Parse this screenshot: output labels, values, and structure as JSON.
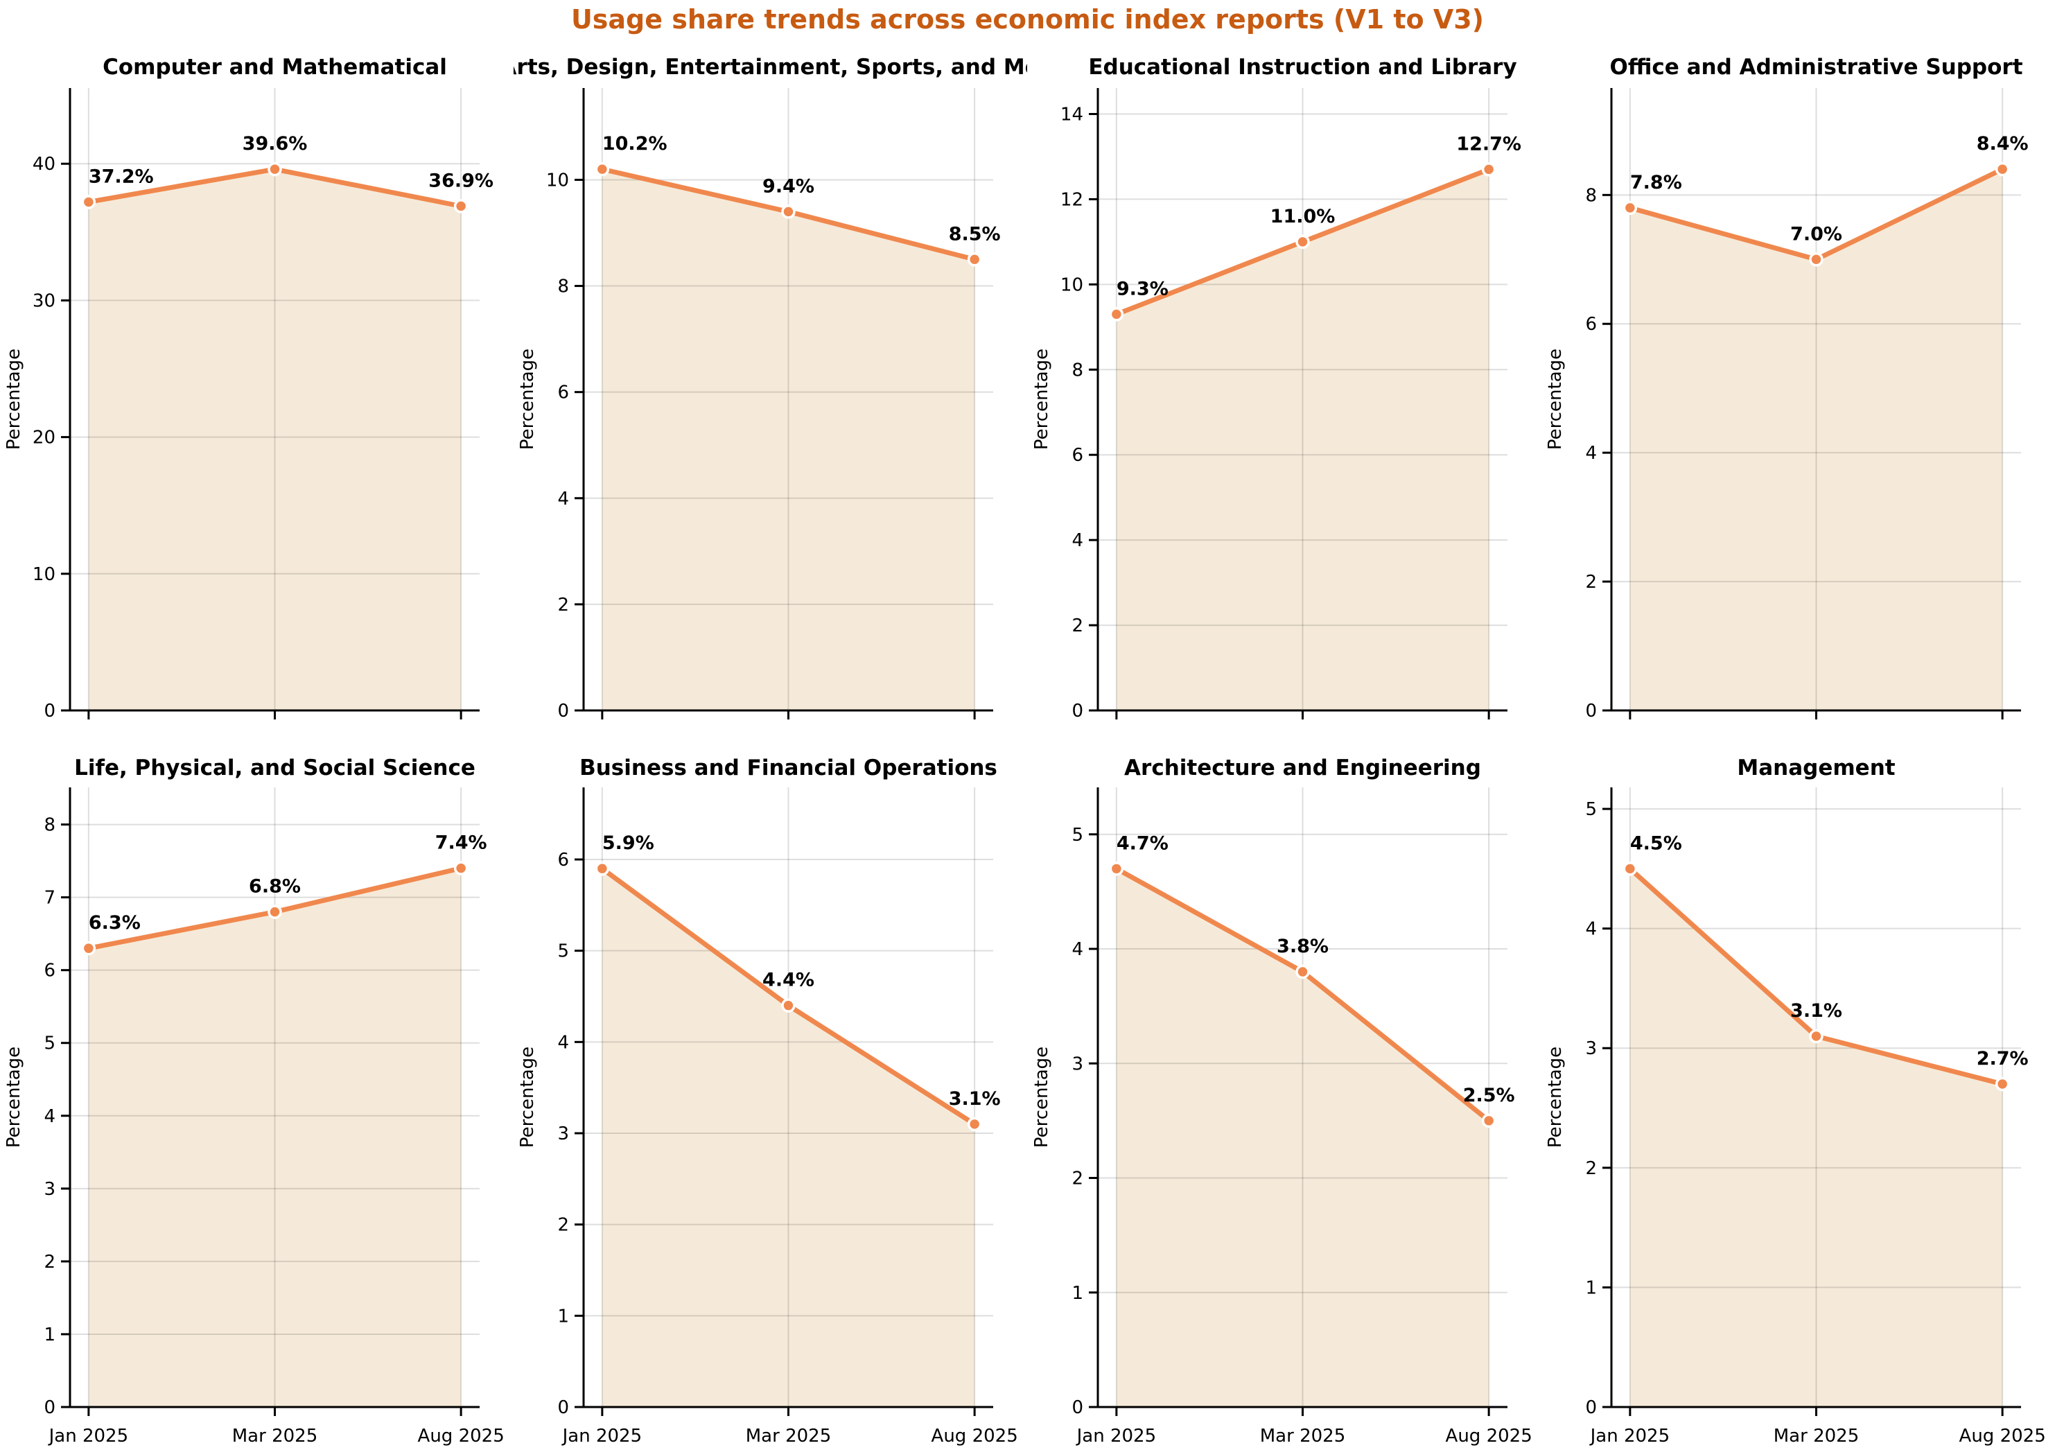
{
  "suptitle": "Usage share trends across economic index reports (V1 to V3)",
  "colors": {
    "suptitle": "#c75b12",
    "line": "#f0884e",
    "marker": "#f0884e",
    "marker_edge": "#ffffff",
    "fill": "#f5ead9",
    "grid": "rgba(0,0,0,0.13)",
    "axis": "#000000",
    "text": "#000000"
  },
  "axis": {
    "ylabel": "Percentage",
    "x_categories": [
      "Jan 2025",
      "Mar 2025",
      "Aug 2025"
    ]
  },
  "chart_data": [
    {
      "type": "area",
      "title": "Computer and Mathematical",
      "x": [
        "Jan 2025",
        "Mar 2025",
        "Aug 2025"
      ],
      "values": [
        37.2,
        39.6,
        36.9
      ],
      "labels": [
        "37.2%",
        "39.6%",
        "36.9%"
      ],
      "ylim": [
        0,
        45.54
      ],
      "yticks": [
        0,
        10,
        20,
        30,
        40
      ],
      "ylabel": "Percentage",
      "grid": true,
      "legend": null
    },
    {
      "type": "area",
      "title": "Arts, Design, Entertainment, Sports, and Media",
      "x": [
        "Jan 2025",
        "Mar 2025",
        "Aug 2025"
      ],
      "values": [
        10.2,
        9.4,
        8.5
      ],
      "labels": [
        "10.2%",
        "9.4%",
        "8.5%"
      ],
      "ylim": [
        0,
        11.73
      ],
      "yticks": [
        0,
        2,
        4,
        6,
        8,
        10
      ],
      "ylabel": "Percentage",
      "grid": true,
      "legend": null
    },
    {
      "type": "area",
      "title": "Educational Instruction and Library",
      "x": [
        "Jan 2025",
        "Mar 2025",
        "Aug 2025"
      ],
      "values": [
        9.3,
        11.0,
        12.7
      ],
      "labels": [
        "9.3%",
        "11.0%",
        "12.7%"
      ],
      "ylim": [
        0,
        14.61
      ],
      "yticks": [
        0,
        2,
        4,
        6,
        8,
        10,
        12,
        14
      ],
      "ylabel": "Percentage",
      "grid": true,
      "legend": null
    },
    {
      "type": "area",
      "title": "Office and Administrative Support",
      "x": [
        "Jan 2025",
        "Mar 2025",
        "Aug 2025"
      ],
      "values": [
        7.8,
        7.0,
        8.4
      ],
      "labels": [
        "7.8%",
        "7.0%",
        "8.4%"
      ],
      "ylim": [
        0,
        9.66
      ],
      "yticks": [
        0,
        2,
        4,
        6,
        8
      ],
      "ylabel": "Percentage",
      "grid": true,
      "legend": null
    },
    {
      "type": "area",
      "title": "Life, Physical, and Social Science",
      "x": [
        "Jan 2025",
        "Mar 2025",
        "Aug 2025"
      ],
      "values": [
        6.3,
        6.8,
        7.4
      ],
      "labels": [
        "6.3%",
        "6.8%",
        "7.4%"
      ],
      "ylim": [
        0,
        8.51
      ],
      "yticks": [
        0,
        1,
        2,
        3,
        4,
        5,
        6,
        7,
        8
      ],
      "ylabel": "Percentage",
      "grid": true,
      "legend": null
    },
    {
      "type": "area",
      "title": "Business and Financial Operations",
      "x": [
        "Jan 2025",
        "Mar 2025",
        "Aug 2025"
      ],
      "values": [
        5.9,
        4.4,
        3.1
      ],
      "labels": [
        "5.9%",
        "4.4%",
        "3.1%"
      ],
      "ylim": [
        0,
        6.79
      ],
      "yticks": [
        0,
        1,
        2,
        3,
        4,
        5,
        6
      ],
      "ylabel": "Percentage",
      "grid": true,
      "legend": null
    },
    {
      "type": "area",
      "title": "Architecture and Engineering",
      "x": [
        "Jan 2025",
        "Mar 2025",
        "Aug 2025"
      ],
      "values": [
        4.7,
        3.8,
        2.5
      ],
      "labels": [
        "4.7%",
        "3.8%",
        "2.5%"
      ],
      "ylim": [
        0,
        5.41
      ],
      "yticks": [
        0,
        1,
        2,
        3,
        4,
        5
      ],
      "ylabel": "Percentage",
      "grid": true,
      "legend": null
    },
    {
      "type": "area",
      "title": "Management",
      "x": [
        "Jan 2025",
        "Mar 2025",
        "Aug 2025"
      ],
      "values": [
        4.5,
        3.1,
        2.7
      ],
      "labels": [
        "4.5%",
        "3.1%",
        "2.7%"
      ],
      "ylim": [
        0,
        5.18
      ],
      "yticks": [
        0,
        1,
        2,
        3,
        4,
        5
      ],
      "ylabel": "Percentage",
      "grid": true,
      "legend": null
    }
  ]
}
